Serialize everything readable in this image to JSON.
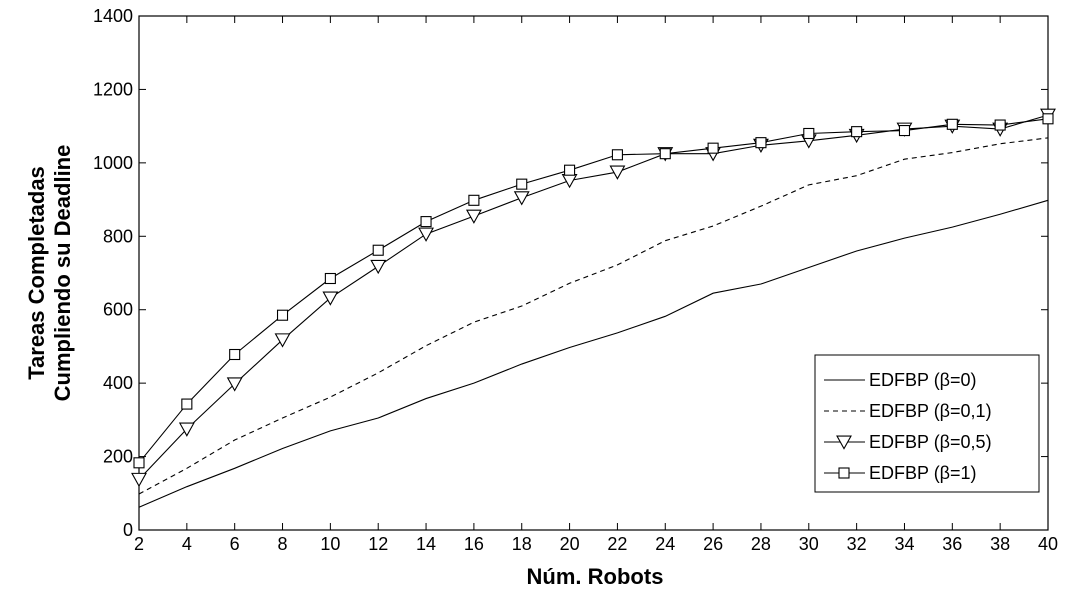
{
  "chart_data": {
    "type": "line",
    "title": "",
    "xlabel": "Núm. Robots",
    "ylabel_lines": [
      "Tareas Completadas",
      "Cumpliendo su Deadline"
    ],
    "xlim": [
      2,
      40
    ],
    "ylim": [
      0,
      1400
    ],
    "x_ticks": [
      2,
      4,
      6,
      8,
      10,
      12,
      14,
      16,
      18,
      20,
      22,
      24,
      26,
      28,
      30,
      32,
      34,
      36,
      38,
      40
    ],
    "y_ticks": [
      0,
      200,
      400,
      600,
      800,
      1000,
      1200,
      1400
    ],
    "grid": false,
    "legend_position": "bottom-right",
    "x": [
      2,
      4,
      6,
      8,
      10,
      12,
      14,
      16,
      18,
      20,
      22,
      24,
      26,
      28,
      30,
      32,
      34,
      36,
      38,
      40
    ],
    "series": [
      {
        "name": "EDFBP (β=0)",
        "style": "solid",
        "marker": "none",
        "color": "#000000",
        "values": [
          62,
          118,
          168,
          222,
          270,
          305,
          358,
          400,
          452,
          497,
          537,
          582,
          645,
          670,
          715,
          760,
          795,
          825,
          860,
          898
        ]
      },
      {
        "name": "EDFBP (β=0,1)",
        "style": "dashed",
        "marker": "none",
        "color": "#000000",
        "values": [
          98,
          168,
          245,
          305,
          362,
          428,
          502,
          566,
          610,
          672,
          722,
          788,
          828,
          882,
          940,
          965,
          1010,
          1028,
          1052,
          1068
        ]
      },
      {
        "name": "EDFBP (β=0,5)",
        "style": "solid",
        "marker": "triangle-down",
        "color": "#000000",
        "values": [
          138,
          275,
          398,
          518,
          632,
          718,
          806,
          855,
          905,
          952,
          975,
          1025,
          1025,
          1048,
          1060,
          1075,
          1092,
          1100,
          1092,
          1130
        ]
      },
      {
        "name": "EDFBP (β=1)",
        "style": "solid",
        "marker": "square",
        "color": "#000000",
        "values": [
          183,
          343,
          478,
          585,
          685,
          762,
          840,
          898,
          942,
          980,
          1022,
          1025,
          1040,
          1055,
          1080,
          1085,
          1088,
          1105,
          1103,
          1120
        ]
      }
    ]
  }
}
